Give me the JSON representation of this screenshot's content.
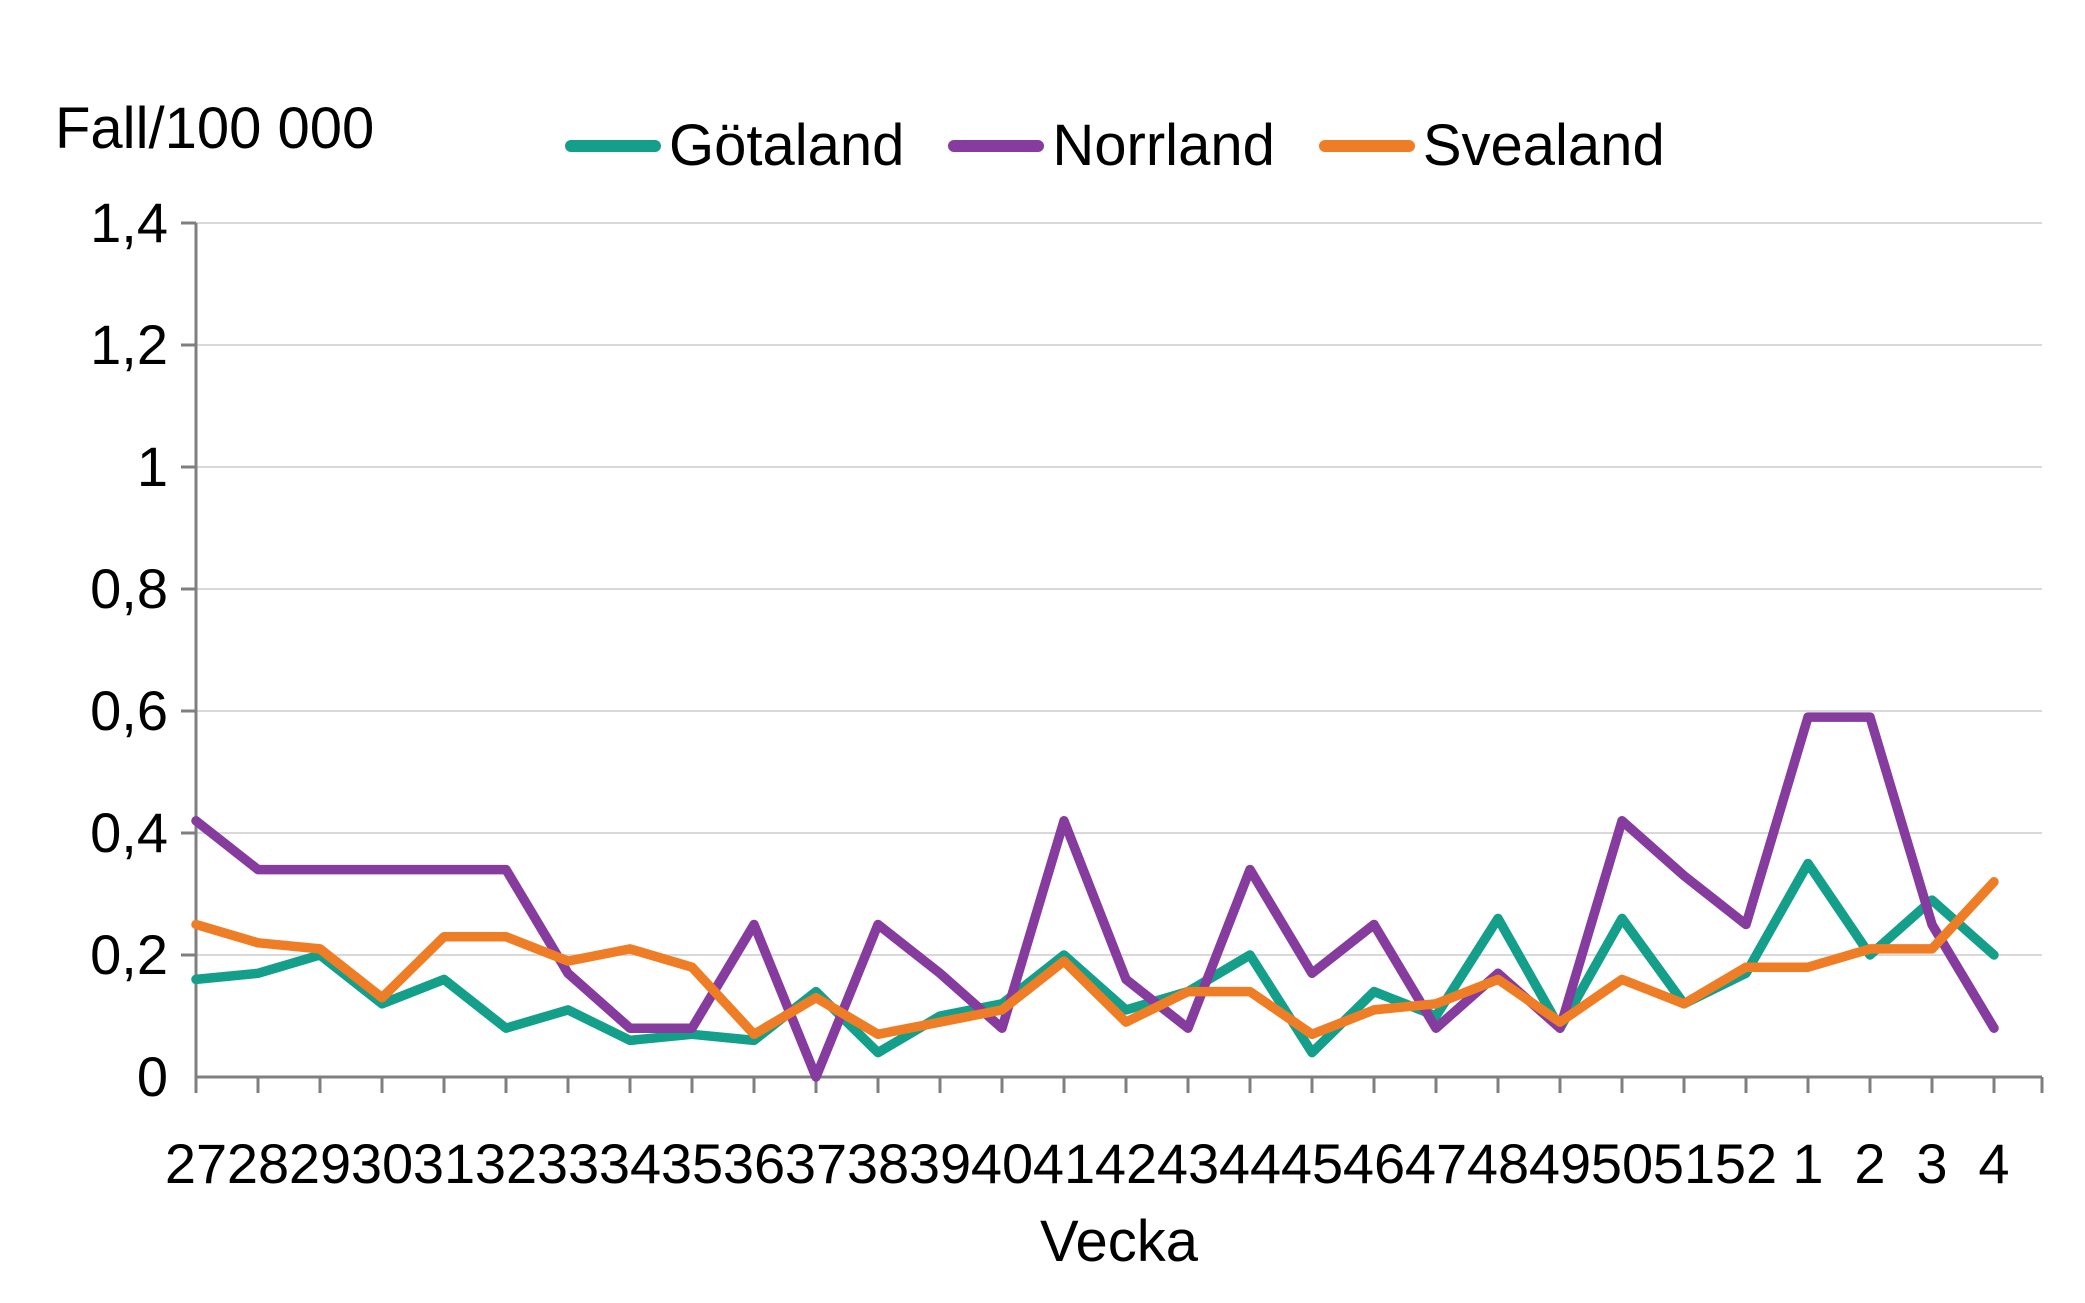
{
  "chart_data": {
    "type": "line",
    "title": "Fall/100 000",
    "xlabel": "Vecka",
    "ylabel": "Fall/100 000",
    "ylim": [
      0,
      1.4
    ],
    "ytick_step": 0.2,
    "yticklabels": [
      "0",
      "0,2",
      "0,4",
      "0,6",
      "0,8",
      "1",
      "1,2",
      "1,4"
    ],
    "grid": "horizontal",
    "legend_position": "top",
    "categories": [
      "27",
      "28",
      "29",
      "30",
      "31",
      "32",
      "33",
      "34",
      "35",
      "36",
      "37",
      "38",
      "39",
      "40",
      "41",
      "42",
      "43",
      "44",
      "45",
      "46",
      "47",
      "48",
      "49",
      "50",
      "51",
      "52",
      "1",
      "2",
      "3",
      "4"
    ],
    "series": [
      {
        "name": "Götaland",
        "color": "#149F8B",
        "values": [
          0.16,
          0.17,
          0.2,
          0.12,
          0.16,
          0.08,
          0.11,
          0.06,
          0.07,
          0.06,
          0.14,
          0.04,
          0.1,
          0.12,
          0.2,
          0.11,
          0.14,
          0.2,
          0.04,
          0.14,
          0.1,
          0.26,
          0.08,
          0.26,
          0.12,
          0.17,
          0.35,
          0.2,
          0.29,
          0.2
        ]
      },
      {
        "name": "Norrland",
        "color": "#863C9E",
        "values": [
          0.42,
          0.34,
          0.34,
          0.34,
          0.34,
          0.34,
          0.17,
          0.08,
          0.08,
          0.25,
          0.0,
          0.25,
          0.17,
          0.08,
          0.42,
          0.16,
          0.08,
          0.34,
          0.17,
          0.25,
          0.08,
          0.17,
          0.08,
          0.42,
          0.33,
          0.25,
          0.59,
          0.59,
          0.25,
          0.08
        ]
      },
      {
        "name": "Svealand",
        "color": "#EF7D26",
        "values": [
          0.25,
          0.22,
          0.21,
          0.13,
          0.23,
          0.23,
          0.19,
          0.21,
          0.18,
          0.07,
          0.13,
          0.07,
          0.09,
          0.11,
          0.19,
          0.09,
          0.14,
          0.14,
          0.07,
          0.11,
          0.12,
          0.16,
          0.09,
          0.16,
          0.12,
          0.18,
          0.18,
          0.21,
          0.21,
          0.32
        ]
      }
    ],
    "colors": {
      "axis": "#7F7F7F",
      "gridline": "#D9D9D9",
      "text": "#000000",
      "background": "#FFFFFF"
    }
  }
}
